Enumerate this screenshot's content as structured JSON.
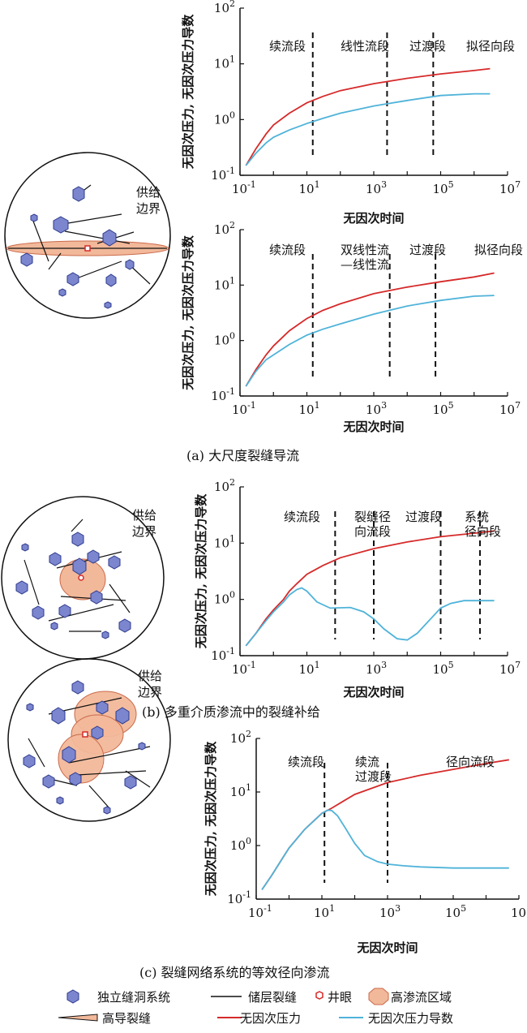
{
  "colors": {
    "pressure": "#d62a2a",
    "derivative": "#4fb3d9",
    "cave": "#7b86cf",
    "cave_stroke": "#2e3a8c",
    "high_perm": "#f2b89a",
    "high_perm_stroke": "#c96a4a",
    "well": "#d62a2a"
  },
  "common": {
    "supply_boundary": "供给\n边界",
    "y_axis_label": "无因次压力, 无因次压力导数",
    "x_axis_label": "无因次时间"
  },
  "panels": [
    {
      "caption": "",
      "segments": [
        "续流段",
        "线性流段",
        "过渡段",
        "拟径向段"
      ]
    },
    {
      "caption": "(a) 大尺度裂缝导流",
      "segments": [
        "续流段",
        "双线性流\n—线性流",
        "过渡段",
        "拟径向段"
      ]
    },
    {
      "caption": "(b) 多重介质渗流中的裂缝补给",
      "segments": [
        "续流段",
        "裂缝径\n向流段",
        "过渡段",
        "系统\n径向段"
      ]
    },
    {
      "caption": "(c) 裂缝网络系统的等效径向渗流",
      "segments": [
        "续流段",
        "续流\n过渡段",
        "径向流段"
      ]
    }
  ],
  "legend": {
    "cave_system": "独立缝洞系统",
    "fracture": "储层裂缝",
    "well": "井眼",
    "high_perm_zone": "高渗流区域",
    "high_cond_fracture": "高导裂缝",
    "pressure": "无因次压力",
    "derivative": "无因次压力导数"
  },
  "chart_data": [
    {
      "type": "line",
      "xlabel": "无因次时间",
      "ylabel": "无因次压力, 无因次压力导数",
      "x_scale": "log",
      "y_scale": "log",
      "xlim": [
        0.1,
        10000000
      ],
      "ylim": [
        0.1,
        100
      ],
      "x_ticks": [
        "10^-1",
        "10^1",
        "10^3",
        "10^5",
        "10^7"
      ],
      "y_ticks": [
        "10^-1",
        "10^0",
        "10^1",
        "10^2"
      ],
      "dividers_x": [
        15,
        2500,
        60000
      ],
      "series": [
        {
          "name": "无因次压力",
          "x": [
            0.15,
            0.3,
            0.6,
            1,
            3,
            10,
            30,
            100,
            1000,
            10000,
            100000,
            1000000,
            3000000
          ],
          "y": [
            0.15,
            0.3,
            0.55,
            0.8,
            1.3,
            2.0,
            2.6,
            3.3,
            4.4,
            5.5,
            6.6,
            7.6,
            8.2
          ]
        },
        {
          "name": "无因次压力导数",
          "x": [
            0.15,
            0.3,
            0.6,
            1,
            3,
            10,
            30,
            100,
            1000,
            10000,
            100000,
            1000000,
            3000000
          ],
          "y": [
            0.15,
            0.25,
            0.38,
            0.48,
            0.65,
            0.85,
            1.05,
            1.3,
            1.75,
            2.2,
            2.7,
            2.9,
            2.9
          ]
        }
      ]
    },
    {
      "type": "line",
      "xlabel": "无因次时间",
      "ylabel": "无因次压力, 无因次压力导数",
      "x_scale": "log",
      "y_scale": "log",
      "xlim": [
        0.1,
        10000000
      ],
      "ylim": [
        0.1,
        100
      ],
      "x_ticks": [
        "10^-1",
        "10^1",
        "10^3",
        "10^5",
        "10^7"
      ],
      "y_ticks": [
        "10^-1",
        "10^0",
        "10^1",
        "10^2"
      ],
      "dividers_x": [
        15,
        3000,
        70000
      ],
      "series": [
        {
          "name": "无因次压力",
          "x": [
            0.15,
            0.3,
            0.6,
            1,
            3,
            10,
            30,
            100,
            1000,
            10000,
            100000,
            1000000,
            4000000
          ],
          "y": [
            0.15,
            0.3,
            0.55,
            0.8,
            1.5,
            2.5,
            3.5,
            4.6,
            7.0,
            9.2,
            11.5,
            14.0,
            16.5
          ]
        },
        {
          "name": "无因次压力导数",
          "x": [
            0.15,
            0.3,
            0.6,
            1,
            3,
            10,
            30,
            100,
            1000,
            10000,
            100000,
            1000000,
            4000000
          ],
          "y": [
            0.15,
            0.28,
            0.45,
            0.55,
            0.85,
            1.25,
            1.6,
            2.0,
            3.0,
            4.2,
            5.3,
            6.3,
            6.5
          ]
        }
      ]
    },
    {
      "type": "line",
      "xlabel": "无因次时间",
      "ylabel": "无因次压力, 无因次压力导数",
      "x_scale": "log",
      "y_scale": "log",
      "xlim": [
        0.1,
        10000000
      ],
      "ylim": [
        0.1,
        100
      ],
      "x_ticks": [
        "10^-1",
        "10^1",
        "10^3",
        "10^5",
        "10^7"
      ],
      "y_ticks": [
        "10^-1",
        "10^0",
        "10^1",
        "10^2"
      ],
      "dividers_x": [
        70,
        1000,
        100000,
        1500000
      ],
      "series": [
        {
          "name": "无因次压力",
          "x": [
            0.15,
            0.3,
            0.6,
            1,
            2,
            3,
            5,
            10,
            30,
            100,
            1000,
            10000,
            100000,
            1000000,
            4000000
          ],
          "y": [
            0.15,
            0.25,
            0.45,
            0.65,
            1.0,
            1.4,
            1.9,
            2.8,
            4.0,
            5.5,
            8.0,
            10.5,
            13.0,
            15.0,
            16.5
          ]
        },
        {
          "name": "无因次压力导数",
          "x": [
            0.15,
            0.3,
            0.6,
            1,
            2,
            3,
            5,
            7,
            10,
            20,
            50,
            200,
            500,
            1000,
            2000,
            5000,
            10000,
            20000,
            50000,
            100000,
            200000,
            500000,
            1000000,
            4000000
          ],
          "y": [
            0.15,
            0.25,
            0.42,
            0.6,
            0.9,
            1.2,
            1.5,
            1.6,
            1.4,
            0.9,
            0.7,
            0.72,
            0.6,
            0.45,
            0.3,
            0.2,
            0.19,
            0.25,
            0.45,
            0.7,
            0.85,
            0.95,
            0.95,
            0.95
          ]
        }
      ]
    },
    {
      "type": "line",
      "xlabel": "无因次时间",
      "ylabel": "无因次压力, 无因次压力导数",
      "x_scale": "log",
      "y_scale": "log",
      "xlim": [
        0.1,
        10000000
      ],
      "ylim": [
        0.1,
        100
      ],
      "x_ticks": [
        "10^-1",
        "10^1",
        "10^3",
        "10^5",
        "10^7"
      ],
      "y_ticks": [
        "10^-1",
        "10^0",
        "10^1",
        "10^2"
      ],
      "dividers_x": [
        12,
        1000
      ],
      "series": [
        {
          "name": "无因次压力",
          "x": [
            0.15,
            0.3,
            0.6,
            1,
            3,
            10,
            20,
            50,
            100,
            1000,
            10000,
            100000,
            1000000,
            5000000
          ],
          "y": [
            0.15,
            0.28,
            0.55,
            0.9,
            2.0,
            4.0,
            5.0,
            7.0,
            9.0,
            15.0,
            20.5,
            26.5,
            34.0,
            40.0
          ]
        },
        {
          "name": "无因次压力导数",
          "x": [
            0.15,
            0.3,
            0.6,
            1,
            3,
            10,
            15,
            20,
            30,
            50,
            100,
            200,
            500,
            1000,
            3000,
            10000,
            100000,
            1000000,
            5000000
          ],
          "y": [
            0.15,
            0.28,
            0.55,
            0.9,
            2.0,
            4.0,
            4.6,
            4.5,
            3.6,
            2.2,
            1.1,
            0.65,
            0.5,
            0.45,
            0.42,
            0.4,
            0.38,
            0.38,
            0.38
          ]
        }
      ]
    }
  ]
}
